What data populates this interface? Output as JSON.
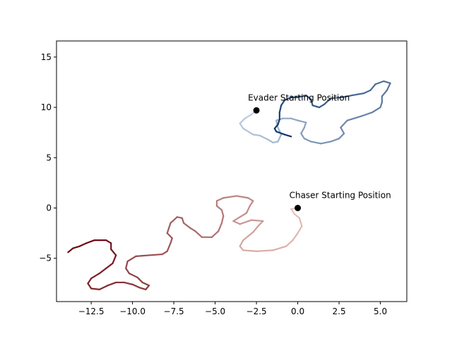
{
  "chart_data": {
    "type": "line",
    "title": "",
    "xlabel": "",
    "ylabel": "",
    "xlim": [
      -14.6,
      6.6
    ],
    "ylim": [
      -9.3,
      16.6
    ],
    "xticks": [
      {
        "value": -12.5,
        "label": "−12.5"
      },
      {
        "value": -10.0,
        "label": "−10.0"
      },
      {
        "value": -7.5,
        "label": "−7.5"
      },
      {
        "value": -5.0,
        "label": "−5.0"
      },
      {
        "value": -2.5,
        "label": "−2.5"
      },
      {
        "value": 0.0,
        "label": "0.0"
      },
      {
        "value": 2.5,
        "label": "2.5"
      },
      {
        "value": 5.0,
        "label": "5.0"
      }
    ],
    "yticks": [
      {
        "value": -5,
        "label": "−5"
      },
      {
        "value": 0,
        "label": "0"
      },
      {
        "value": 5,
        "label": "5"
      },
      {
        "value": 10,
        "label": "10"
      },
      {
        "value": 15,
        "label": "15"
      }
    ],
    "grid": false,
    "series": [
      {
        "color_map": "Reds",
        "color_start": "#fee5d9",
        "color_end": "#67000d",
        "points": [
          [
            0.0,
            0.0
          ],
          [
            -0.4,
            -0.1
          ],
          [
            -0.2,
            -0.6
          ],
          [
            0.1,
            -1.0
          ],
          [
            0.25,
            -1.8
          ],
          [
            0.0,
            -2.5
          ],
          [
            -0.3,
            -3.2
          ],
          [
            -0.7,
            -3.8
          ],
          [
            -1.5,
            -4.2
          ],
          [
            -2.5,
            -4.3
          ],
          [
            -3.3,
            -4.2
          ],
          [
            -3.5,
            -3.8
          ],
          [
            -3.3,
            -3.2
          ],
          [
            -3.0,
            -2.8
          ],
          [
            -2.7,
            -2.4
          ],
          [
            -2.4,
            -1.8
          ],
          [
            -2.1,
            -1.3
          ],
          [
            -2.8,
            -1.2
          ],
          [
            -3.5,
            -1.6
          ],
          [
            -3.9,
            -1.3
          ],
          [
            -3.5,
            -0.9
          ],
          [
            -3.1,
            -0.5
          ],
          [
            -2.9,
            0.2
          ],
          [
            -2.7,
            0.7
          ],
          [
            -3.0,
            1.0
          ],
          [
            -3.7,
            1.2
          ],
          [
            -4.5,
            1.0
          ],
          [
            -4.9,
            0.7
          ],
          [
            -4.9,
            0.2
          ],
          [
            -4.6,
            -0.2
          ],
          [
            -4.5,
            -0.8
          ],
          [
            -4.6,
            -1.5
          ],
          [
            -4.8,
            -2.3
          ],
          [
            -5.2,
            -2.9
          ],
          [
            -5.8,
            -2.9
          ],
          [
            -6.2,
            -2.3
          ],
          [
            -6.5,
            -2.0
          ],
          [
            -6.9,
            -1.5
          ],
          [
            -7.0,
            -1.0
          ],
          [
            -7.3,
            -0.9
          ],
          [
            -7.7,
            -1.5
          ],
          [
            -7.9,
            -2.5
          ],
          [
            -7.6,
            -3.0
          ],
          [
            -7.7,
            -3.5
          ],
          [
            -7.9,
            -4.3
          ],
          [
            -8.2,
            -4.6
          ],
          [
            -9.0,
            -4.7
          ],
          [
            -9.8,
            -4.8
          ],
          [
            -10.3,
            -5.3
          ],
          [
            -10.4,
            -6.0
          ],
          [
            -10.2,
            -6.5
          ],
          [
            -9.7,
            -6.9
          ],
          [
            -9.4,
            -7.4
          ],
          [
            -9.0,
            -7.7
          ],
          [
            -9.2,
            -8.1
          ],
          [
            -9.6,
            -7.9
          ],
          [
            -10.0,
            -7.6
          ],
          [
            -10.5,
            -7.4
          ],
          [
            -11.0,
            -7.4
          ],
          [
            -11.5,
            -7.7
          ],
          [
            -12.0,
            -8.1
          ],
          [
            -12.5,
            -8.0
          ],
          [
            -12.7,
            -7.5
          ],
          [
            -12.5,
            -7.0
          ],
          [
            -12.0,
            -6.5
          ],
          [
            -11.6,
            -6.0
          ],
          [
            -11.2,
            -5.5
          ],
          [
            -11.0,
            -4.7
          ],
          [
            -11.3,
            -4.1
          ],
          [
            -11.3,
            -3.5
          ],
          [
            -11.6,
            -3.2
          ],
          [
            -12.3,
            -3.2
          ],
          [
            -12.8,
            -3.5
          ],
          [
            -13.2,
            -3.8
          ],
          [
            -13.6,
            -4.0
          ],
          [
            -13.9,
            -4.4
          ]
        ]
      },
      {
        "color_map": "Blues",
        "color_start": "#deebf7",
        "color_end": "#08306b",
        "points": [
          [
            -2.5,
            9.7
          ],
          [
            -2.8,
            9.3
          ],
          [
            -3.2,
            8.9
          ],
          [
            -3.5,
            8.4
          ],
          [
            -3.3,
            7.9
          ],
          [
            -2.7,
            7.3
          ],
          [
            -2.3,
            7.2
          ],
          [
            -1.8,
            6.8
          ],
          [
            -1.5,
            6.5
          ],
          [
            -1.2,
            6.6
          ],
          [
            -1.0,
            7.3
          ],
          [
            -1.2,
            8.0
          ],
          [
            -1.3,
            8.7
          ],
          [
            -0.9,
            8.9
          ],
          [
            -0.4,
            8.9
          ],
          [
            0.0,
            8.7
          ],
          [
            0.5,
            8.5
          ],
          [
            0.4,
            8.0
          ],
          [
            0.2,
            7.4
          ],
          [
            0.4,
            6.9
          ],
          [
            0.8,
            6.6
          ],
          [
            1.4,
            6.4
          ],
          [
            2.0,
            6.6
          ],
          [
            2.5,
            6.9
          ],
          [
            2.8,
            7.4
          ],
          [
            2.6,
            8.0
          ],
          [
            3.0,
            8.7
          ],
          [
            3.8,
            9.1
          ],
          [
            4.5,
            9.5
          ],
          [
            5.0,
            10.0
          ],
          [
            5.1,
            10.5
          ],
          [
            5.1,
            11.1
          ],
          [
            5.4,
            11.7
          ],
          [
            5.6,
            12.4
          ],
          [
            5.2,
            12.6
          ],
          [
            4.7,
            12.3
          ],
          [
            4.4,
            11.7
          ],
          [
            4.0,
            11.4
          ],
          [
            3.3,
            11.2
          ],
          [
            2.7,
            11.0
          ],
          [
            2.0,
            10.9
          ],
          [
            1.6,
            10.3
          ],
          [
            1.3,
            10.0
          ],
          [
            0.9,
            10.2
          ],
          [
            0.8,
            10.8
          ],
          [
            0.5,
            11.2
          ],
          [
            0.0,
            11.0
          ],
          [
            -0.4,
            11.0
          ],
          [
            -0.8,
            10.7
          ],
          [
            -1.0,
            10.2
          ],
          [
            -1.1,
            9.5
          ],
          [
            -1.1,
            8.8
          ],
          [
            -1.2,
            8.3
          ],
          [
            -1.4,
            7.9
          ],
          [
            -1.3,
            7.6
          ],
          [
            -0.8,
            7.3
          ],
          [
            -0.4,
            7.1
          ]
        ]
      }
    ],
    "annotations": [
      {
        "label": "Chaser Starting Position",
        "x": 0.0,
        "y": 0.0
      },
      {
        "label": "Evader Starting Position",
        "x": -2.5,
        "y": 9.7
      }
    ]
  }
}
